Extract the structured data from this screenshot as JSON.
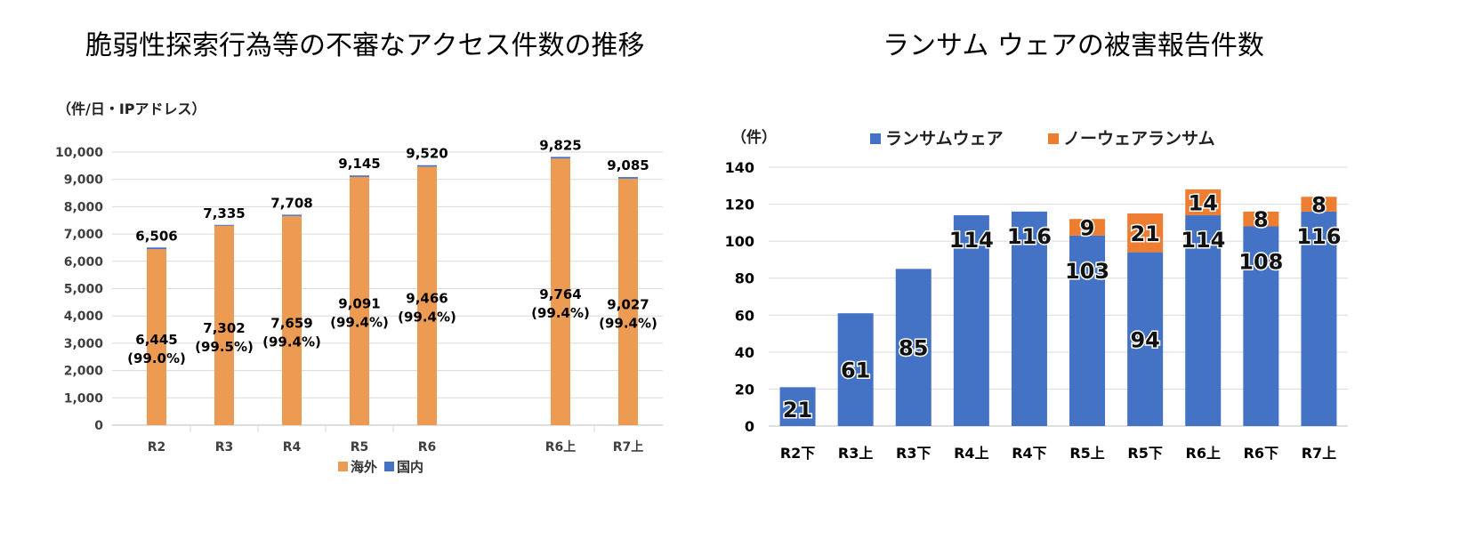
{
  "chart_data": [
    {
      "type": "bar",
      "stacked": true,
      "title": "脆弱性探索行為等の不審なアクセス件数の推移",
      "unit_label": "（件/日・IPアドレス）",
      "categories": [
        "R2",
        "R3",
        "R4",
        "R5",
        "R6",
        "R6上",
        "R7上"
      ],
      "gap_after_index": 4,
      "series": [
        {
          "name": "海外",
          "color": "#ED9B53",
          "values": [
            6445,
            7302,
            7659,
            9091,
            9466,
            9764,
            9027
          ],
          "labels": [
            "6,445\n(99.0%)",
            "7,302\n(99.5%)",
            "7,659\n(99.4%)",
            "9,091\n(99.4%)",
            "9,466\n(99.4%)",
            "9,764\n(99.4%)",
            "9,027\n(99.4%)"
          ]
        },
        {
          "name": "国内",
          "color": "#4472C4",
          "values": [
            61,
            33,
            49,
            54,
            54,
            61,
            58
          ]
        }
      ],
      "totals": [
        "6,506",
        "7,335",
        "7,708",
        "9,145",
        "9,520",
        "9,825",
        "9,085"
      ],
      "total_values": [
        6506,
        7335,
        7708,
        9145,
        9520,
        9825,
        9085
      ],
      "ylim": [
        0,
        10000
      ],
      "yticks": [
        "0",
        "1,000",
        "2,000",
        "3,000",
        "4,000",
        "5,000",
        "6,000",
        "7,000",
        "8,000",
        "9,000",
        "10,000"
      ],
      "legend": "bottom"
    },
    {
      "type": "bar",
      "stacked": true,
      "title": "ランサム ウェアの被害報告件数",
      "unit_label": "（件）",
      "categories": [
        "R2下",
        "R3上",
        "R3下",
        "R4上",
        "R4下",
        "R5上",
        "R5下",
        "R6上",
        "R6下",
        "R7上"
      ],
      "series": [
        {
          "name": "ランサムウェア",
          "color": "#4472C4",
          "values": [
            21,
            61,
            85,
            114,
            116,
            103,
            94,
            114,
            108,
            116
          ],
          "labels": [
            "21",
            "61",
            "85",
            "114",
            "116",
            "103",
            "94",
            "114",
            "108",
            "116"
          ]
        },
        {
          "name": "ノーウェアランサム",
          "color": "#ED7D31",
          "values": [
            0,
            0,
            0,
            0,
            0,
            9,
            21,
            14,
            8,
            8
          ],
          "labels": [
            "",
            "",
            "",
            "",
            "",
            "9",
            "21",
            "14",
            "8",
            "8"
          ]
        }
      ],
      "ylim": [
        0,
        140
      ],
      "yticks": [
        "0",
        "20",
        "40",
        "60",
        "80",
        "100",
        "120",
        "140"
      ],
      "legend": "top"
    }
  ]
}
